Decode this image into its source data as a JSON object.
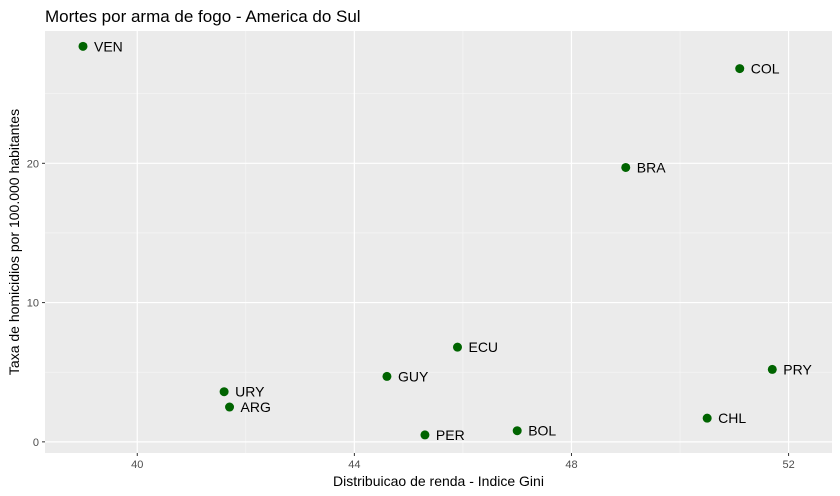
{
  "chart_data": {
    "type": "scatter",
    "title": "Mortes por arma de fogo - America do Sul",
    "xlabel": "Distribuicao de renda - Indice Gini",
    "ylabel": "Taxa de homicidios por 100.000 habitantes",
    "xlim": [
      38.3,
      52.8
    ],
    "ylim": [
      -0.8,
      29.5
    ],
    "x_ticks": [
      40,
      44,
      48,
      52
    ],
    "y_ticks": [
      0,
      10,
      20
    ],
    "x_minor": [
      42,
      46,
      50
    ],
    "y_minor": [
      5,
      15,
      25
    ],
    "grid": true,
    "point_color": "#006400",
    "panel_color": "#ebebeb",
    "points": [
      {
        "label": "VEN",
        "x": 39.0,
        "y": 28.4
      },
      {
        "label": "COL",
        "x": 51.1,
        "y": 26.8
      },
      {
        "label": "BRA",
        "x": 49.0,
        "y": 19.7
      },
      {
        "label": "ECU",
        "x": 45.9,
        "y": 6.8
      },
      {
        "label": "PRY",
        "x": 51.7,
        "y": 5.2
      },
      {
        "label": "GUY",
        "x": 44.6,
        "y": 4.7
      },
      {
        "label": "URY",
        "x": 41.6,
        "y": 3.6
      },
      {
        "label": "ARG",
        "x": 41.7,
        "y": 2.5
      },
      {
        "label": "CHL",
        "x": 50.5,
        "y": 1.7
      },
      {
        "label": "BOL",
        "x": 47.0,
        "y": 0.8
      },
      {
        "label": "PER",
        "x": 45.3,
        "y": 0.5
      }
    ]
  }
}
